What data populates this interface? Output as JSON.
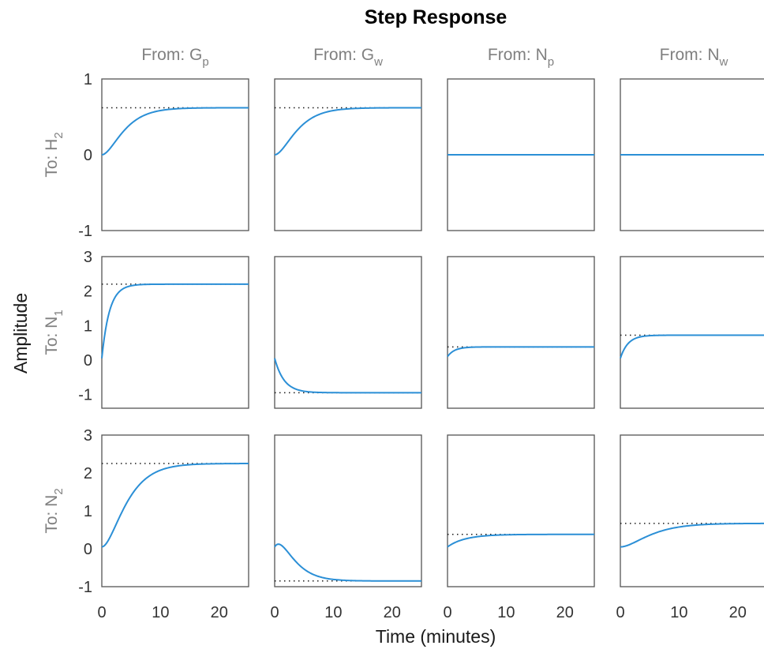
{
  "chart_data": {
    "type": "line",
    "title": "Step Response",
    "xlabel": "Time (minutes)",
    "ylabel": "Amplitude",
    "xlim": [
      0,
      25
    ],
    "xticks": [
      0,
      10,
      20
    ],
    "grid": false,
    "line_color": "#2b8fd6",
    "steady_state_line_style": "dotted",
    "inputs": [
      {
        "label": "From: G",
        "subscript": "p"
      },
      {
        "label": "From: G",
        "subscript": "w"
      },
      {
        "label": "From: N",
        "subscript": "p"
      },
      {
        "label": "From: N",
        "subscript": "w"
      }
    ],
    "outputs": [
      {
        "label": "To: H",
        "subscript": "2",
        "ylim": [
          -1,
          1
        ],
        "yticks": [
          -1,
          0,
          1
        ]
      },
      {
        "label": "To: N",
        "subscript": "1",
        "ylim": [
          -1.4,
          3
        ],
        "yticks": [
          -1,
          0,
          1,
          2,
          3
        ]
      },
      {
        "label": "To: N",
        "subscript": "2",
        "ylim": [
          -1,
          3
        ],
        "yticks": [
          -1,
          0,
          1,
          2,
          3
        ]
      }
    ],
    "responses": [
      [
        {
          "steady": 0.62,
          "tau": 2.2,
          "shape": "second_order"
        },
        {
          "steady": 0.62,
          "tau": 2.2,
          "shape": "second_order"
        },
        {
          "steady": 0,
          "tau": 1,
          "shape": "flat"
        },
        {
          "steady": 0,
          "tau": 1,
          "shape": "flat"
        }
      ],
      [
        {
          "steady": 2.2,
          "tau": 1.3,
          "shape": "first_order",
          "initial": 0.05
        },
        {
          "steady": -0.95,
          "tau": 1.6,
          "shape": "first_order",
          "initial": 0.05
        },
        {
          "steady": 0.38,
          "tau": 1.2,
          "shape": "first_order",
          "initial": 0.1
        },
        {
          "steady": 0.72,
          "tau": 1.3,
          "shape": "first_order",
          "initial": 0.05
        }
      ],
      [
        {
          "steady": 2.25,
          "tau": 2.4,
          "shape": "second_order",
          "initial": 0.05
        },
        {
          "steady": -0.85,
          "tau": 2.0,
          "shape": "overshoot_reverse",
          "initial": 0.05,
          "peak": 0.2,
          "peak_time": 1.6
        },
        {
          "steady": 0.38,
          "tau": 3.0,
          "shape": "first_order",
          "initial": 0.05
        },
        {
          "steady": 0.67,
          "tau": 3.0,
          "shape": "second_order",
          "initial": 0.05
        }
      ]
    ]
  }
}
